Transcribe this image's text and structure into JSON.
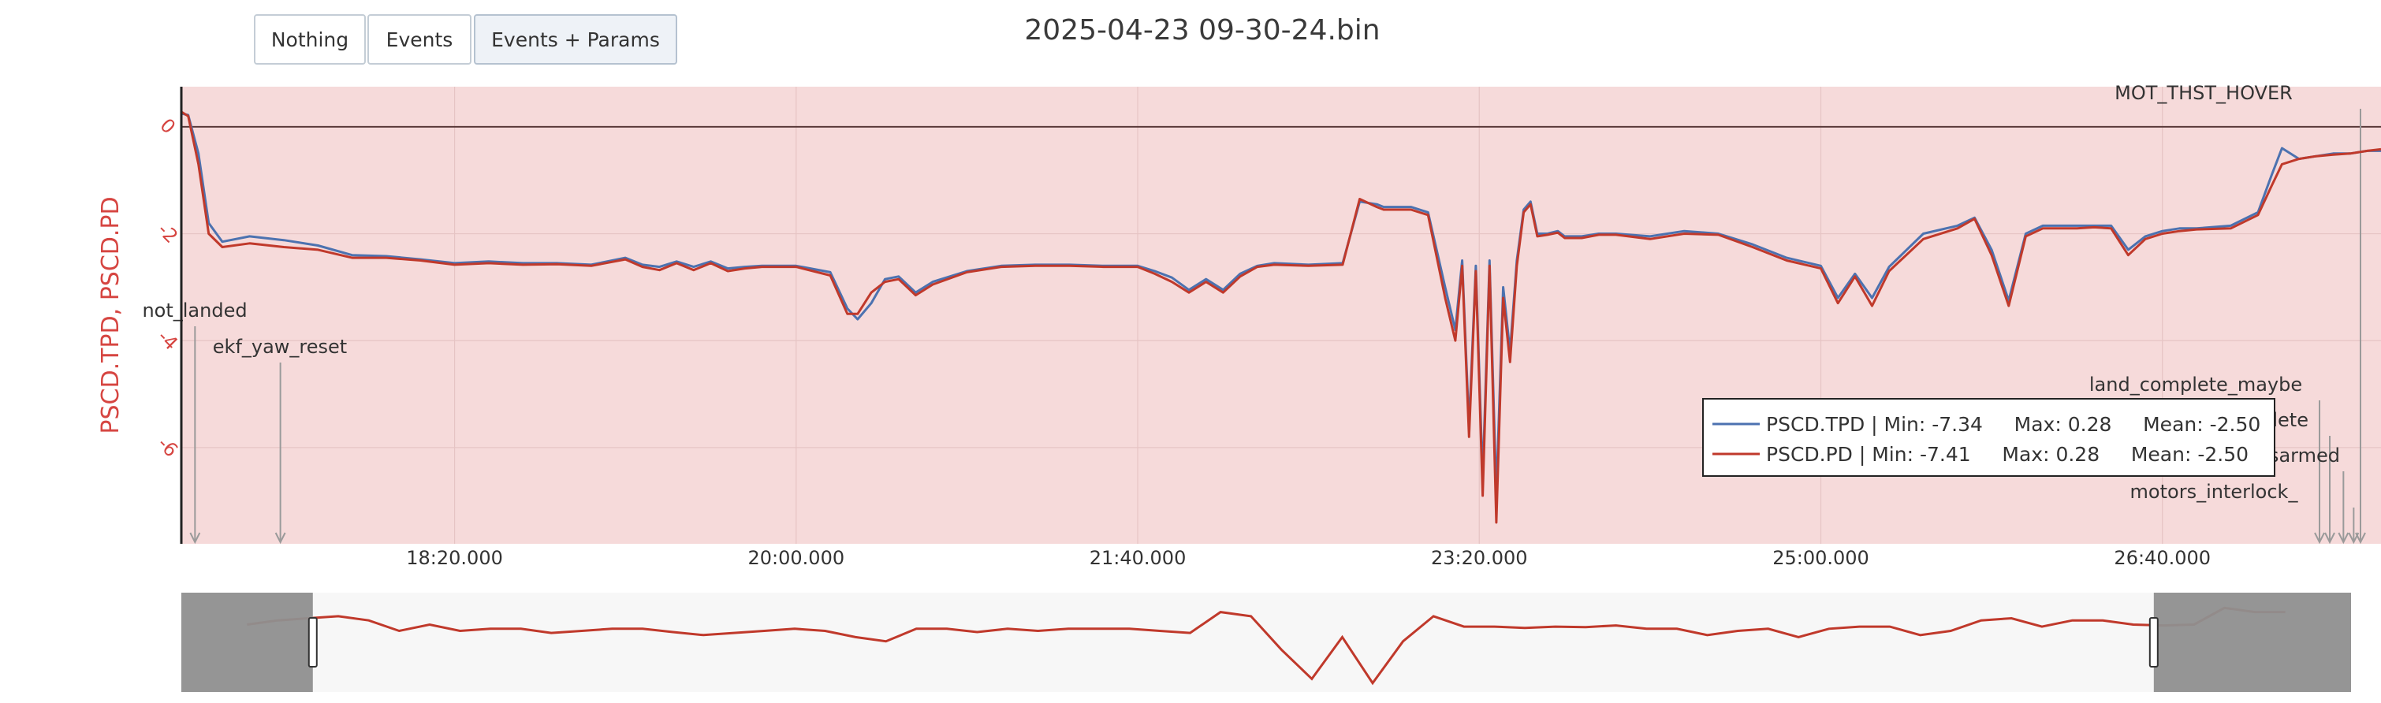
{
  "toolbar": {
    "buttons": [
      {
        "label": "Nothing"
      },
      {
        "label": "Events"
      },
      {
        "label": "Events + Params"
      }
    ]
  },
  "chart_data": {
    "type": "line",
    "title": "2025-04-23 09-30-24.bin",
    "ylabel": "PSCD.TPD, PSCD.PD",
    "ylim": [
      -7.8,
      0.75
    ],
    "xlim": [
      1020,
      1664
    ],
    "x_ticks": [
      1100,
      1200,
      1300,
      1400,
      1500,
      1600
    ],
    "x_tick_labels": [
      "18:20.000",
      "20:00.000",
      "21:40.000",
      "23:20.000",
      "25:00.000",
      "26:40.000"
    ],
    "y_ticks": [
      0,
      -2,
      -4,
      -6
    ],
    "y_tick_labels": [
      "0",
      "-2",
      "-4",
      "-6"
    ],
    "hline_y": 0,
    "grid": true,
    "legend_position": "lower-right",
    "colors": {
      "plot_bg": "#f6dada",
      "tpd": "#4c72b0",
      "pd": "#c0392b",
      "ylabel": "#d64541",
      "event_line": "#9a9a9a",
      "nav_bg": "#f7f7f7",
      "nav_mask": "#8f8f8f"
    },
    "series": [
      {
        "name": "PSCD.TPD",
        "legend": "PSCD.TPD | Min: -7.34     Max: 0.28     Mean: -2.50",
        "x": [
          1020,
          1022,
          1025,
          1028,
          1032,
          1040,
          1050,
          1060,
          1070,
          1080,
          1090,
          1100,
          1110,
          1120,
          1130,
          1140,
          1150,
          1155,
          1160,
          1165,
          1170,
          1175,
          1180,
          1185,
          1190,
          1200,
          1210,
          1215,
          1218,
          1222,
          1226,
          1230,
          1235,
          1240,
          1250,
          1260,
          1270,
          1280,
          1290,
          1300,
          1305,
          1310,
          1315,
          1320,
          1325,
          1330,
          1335,
          1340,
          1350,
          1360,
          1365,
          1370,
          1372,
          1375,
          1380,
          1385,
          1390,
          1393,
          1395,
          1397,
          1399,
          1401,
          1403,
          1405,
          1407,
          1409,
          1411,
          1413,
          1415,
          1417,
          1420,
          1423,
          1425,
          1430,
          1435,
          1440,
          1450,
          1460,
          1470,
          1480,
          1490,
          1500,
          1505,
          1510,
          1515,
          1520,
          1530,
          1540,
          1545,
          1550,
          1555,
          1560,
          1565,
          1570,
          1575,
          1580,
          1585,
          1590,
          1595,
          1600,
          1605,
          1610,
          1620,
          1628,
          1632,
          1635,
          1640,
          1645,
          1650,
          1655,
          1660,
          1664
        ],
        "y": [
          0.25,
          0.22,
          -0.5,
          -1.8,
          -2.15,
          -2.05,
          -2.12,
          -2.22,
          -2.4,
          -2.42,
          -2.48,
          -2.55,
          -2.52,
          -2.55,
          -2.55,
          -2.58,
          -2.45,
          -2.58,
          -2.62,
          -2.52,
          -2.62,
          -2.52,
          -2.65,
          -2.62,
          -2.6,
          -2.6,
          -2.72,
          -3.4,
          -3.6,
          -3.3,
          -2.85,
          -2.8,
          -3.1,
          -2.9,
          -2.7,
          -2.6,
          -2.58,
          -2.58,
          -2.6,
          -2.6,
          -2.7,
          -2.82,
          -3.05,
          -2.85,
          -3.05,
          -2.75,
          -2.6,
          -2.55,
          -2.58,
          -2.55,
          -1.4,
          -1.45,
          -1.5,
          -1.5,
          -1.5,
          -1.6,
          -3.0,
          -3.8,
          -2.5,
          -5.6,
          -2.6,
          -6.6,
          -2.5,
          -6.9,
          -3.0,
          -4.2,
          -2.5,
          -1.55,
          -1.4,
          -2.0,
          -2.0,
          -1.95,
          -2.05,
          -2.05,
          -2.0,
          -2.0,
          -2.05,
          -1.95,
          -2.0,
          -2.2,
          -2.45,
          -2.6,
          -3.2,
          -2.75,
          -3.2,
          -2.62,
          -2.0,
          -1.85,
          -1.7,
          -2.3,
          -3.25,
          -2.0,
          -1.85,
          -1.85,
          -1.85,
          -1.85,
          -1.85,
          -2.3,
          -2.05,
          -1.95,
          -1.9,
          -1.9,
          -1.85,
          -1.6,
          -0.9,
          -0.4,
          -0.6,
          -0.55,
          -0.5,
          -0.5,
          -0.45,
          -0.45
        ]
      },
      {
        "name": "PSCD.PD",
        "legend": "PSCD.PD | Min: -7.41     Max: 0.28     Mean: -2.50",
        "x": [
          1020,
          1022,
          1025,
          1028,
          1032,
          1040,
          1050,
          1060,
          1070,
          1080,
          1090,
          1100,
          1110,
          1120,
          1130,
          1140,
          1150,
          1155,
          1160,
          1165,
          1170,
          1175,
          1180,
          1185,
          1190,
          1200,
          1210,
          1215,
          1218,
          1222,
          1226,
          1230,
          1235,
          1240,
          1250,
          1260,
          1270,
          1280,
          1290,
          1300,
          1305,
          1310,
          1315,
          1320,
          1325,
          1330,
          1335,
          1340,
          1350,
          1360,
          1365,
          1370,
          1372,
          1375,
          1380,
          1385,
          1390,
          1393,
          1395,
          1397,
          1399,
          1401,
          1403,
          1405,
          1407,
          1409,
          1411,
          1413,
          1415,
          1417,
          1420,
          1423,
          1425,
          1430,
          1435,
          1440,
          1450,
          1460,
          1470,
          1480,
          1490,
          1500,
          1505,
          1510,
          1515,
          1520,
          1530,
          1540,
          1545,
          1550,
          1555,
          1560,
          1565,
          1570,
          1575,
          1580,
          1585,
          1590,
          1595,
          1600,
          1605,
          1610,
          1620,
          1628,
          1632,
          1635,
          1640,
          1645,
          1650,
          1655,
          1660,
          1664
        ],
        "y": [
          0.28,
          0.2,
          -0.7,
          -2.0,
          -2.25,
          -2.18,
          -2.25,
          -2.3,
          -2.45,
          -2.45,
          -2.5,
          -2.58,
          -2.55,
          -2.58,
          -2.57,
          -2.6,
          -2.48,
          -2.62,
          -2.68,
          -2.55,
          -2.68,
          -2.55,
          -2.7,
          -2.65,
          -2.62,
          -2.62,
          -2.78,
          -3.5,
          -3.5,
          -3.1,
          -2.9,
          -2.85,
          -3.15,
          -2.95,
          -2.72,
          -2.62,
          -2.6,
          -2.6,
          -2.62,
          -2.62,
          -2.75,
          -2.9,
          -3.1,
          -2.9,
          -3.1,
          -2.8,
          -2.62,
          -2.58,
          -2.6,
          -2.58,
          -1.35,
          -1.5,
          -1.55,
          -1.55,
          -1.55,
          -1.65,
          -3.2,
          -4.0,
          -2.6,
          -5.8,
          -2.7,
          -6.9,
          -2.6,
          -7.4,
          -3.2,
          -4.4,
          -2.6,
          -1.6,
          -1.45,
          -2.05,
          -2.02,
          -1.98,
          -2.08,
          -2.08,
          -2.02,
          -2.02,
          -2.1,
          -2.0,
          -2.02,
          -2.25,
          -2.5,
          -2.65,
          -3.3,
          -2.8,
          -3.35,
          -2.7,
          -2.1,
          -1.9,
          -1.72,
          -2.4,
          -3.35,
          -2.05,
          -1.9,
          -1.9,
          -1.9,
          -1.88,
          -1.9,
          -2.4,
          -2.1,
          -2.0,
          -1.95,
          -1.92,
          -1.9,
          -1.65,
          -1.1,
          -0.7,
          -0.6,
          -0.55,
          -0.52,
          -0.5,
          -0.45,
          -0.42
        ]
      }
    ],
    "events": [
      {
        "label": "not_landed",
        "x": 1024
      },
      {
        "label": "ekf_yaw_reset",
        "x": 1049
      },
      {
        "label": "land_complete_maybe",
        "x": 1646
      },
      {
        "label": "land_complete",
        "x": 1649
      },
      {
        "label": "disarmed",
        "x": 1653
      },
      {
        "label": "motors_interlock_",
        "x": 1656
      },
      {
        "label": "MOT_THST_HOVER",
        "x": 1658
      }
    ],
    "navigator": {
      "x_range": [
        1000,
        1660
      ],
      "selection": [
        1040,
        1600
      ],
      "y": [
        -0.2,
        -0.1,
        -0.05,
        0.0,
        -0.1,
        -0.35,
        -0.2,
        -0.35,
        -0.3,
        -0.3,
        -0.4,
        -0.35,
        -0.3,
        -0.3,
        -0.38,
        -0.45,
        -0.4,
        -0.35,
        -0.3,
        -0.35,
        -0.5,
        -0.6,
        -0.3,
        -0.3,
        -0.38,
        -0.3,
        -0.35,
        -0.3,
        -0.3,
        -0.3,
        -0.35,
        -0.4,
        0.1,
        0.0,
        -0.8,
        -1.5,
        -0.5,
        -1.6,
        -0.6,
        0.0,
        -0.25,
        -0.25,
        -0.28,
        -0.25,
        -0.26,
        -0.22,
        -0.3,
        -0.3,
        -0.45,
        -0.35,
        -0.3,
        -0.5,
        -0.3,
        -0.25,
        -0.25,
        -0.45,
        -0.35,
        -0.1,
        -0.05,
        -0.25,
        -0.1,
        -0.1,
        -0.2,
        -0.22,
        -0.2,
        0.2,
        0.1,
        0.1
      ]
    }
  }
}
